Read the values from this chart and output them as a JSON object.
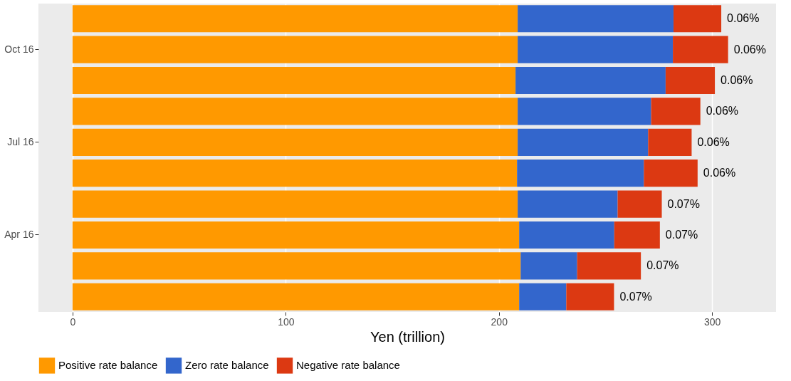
{
  "chart_data": {
    "type": "bar",
    "orientation": "horizontal",
    "stacked": true,
    "xlabel": "Yen (trillion)",
    "categories": [
      null,
      "Oct 16",
      null,
      null,
      "Jul 16",
      null,
      null,
      "Apr 16",
      null,
      null
    ],
    "series": [
      {
        "name": "Positive rate balance",
        "color": "#ff9900",
        "values": [
          208.8,
          208.8,
          207.8,
          208.8,
          208.8,
          208.5,
          208.8,
          209.5,
          210.2,
          209.5
        ]
      },
      {
        "name": "Zero rate balance",
        "color": "#3366cc",
        "values": [
          73.1,
          72.8,
          70.4,
          62.6,
          61.2,
          59.5,
          46.9,
          44.6,
          26.5,
          22.1
        ]
      },
      {
        "name": "Negative rate balance",
        "color": "#dc3912",
        "values": [
          22.4,
          25.9,
          23.1,
          23.1,
          20.4,
          25.2,
          20.7,
          21.4,
          29.9,
          22.4
        ]
      }
    ],
    "value_labels": [
      "0.06%",
      "0.06%",
      "0.06%",
      "0.06%",
      "0.06%",
      "0.06%",
      "0.07%",
      "0.07%",
      "0.07%",
      "0.07%"
    ],
    "xlim": [
      -16,
      330
    ],
    "xticks": [
      0,
      100,
      200,
      300
    ],
    "grid": "x",
    "legend": "bottom"
  }
}
